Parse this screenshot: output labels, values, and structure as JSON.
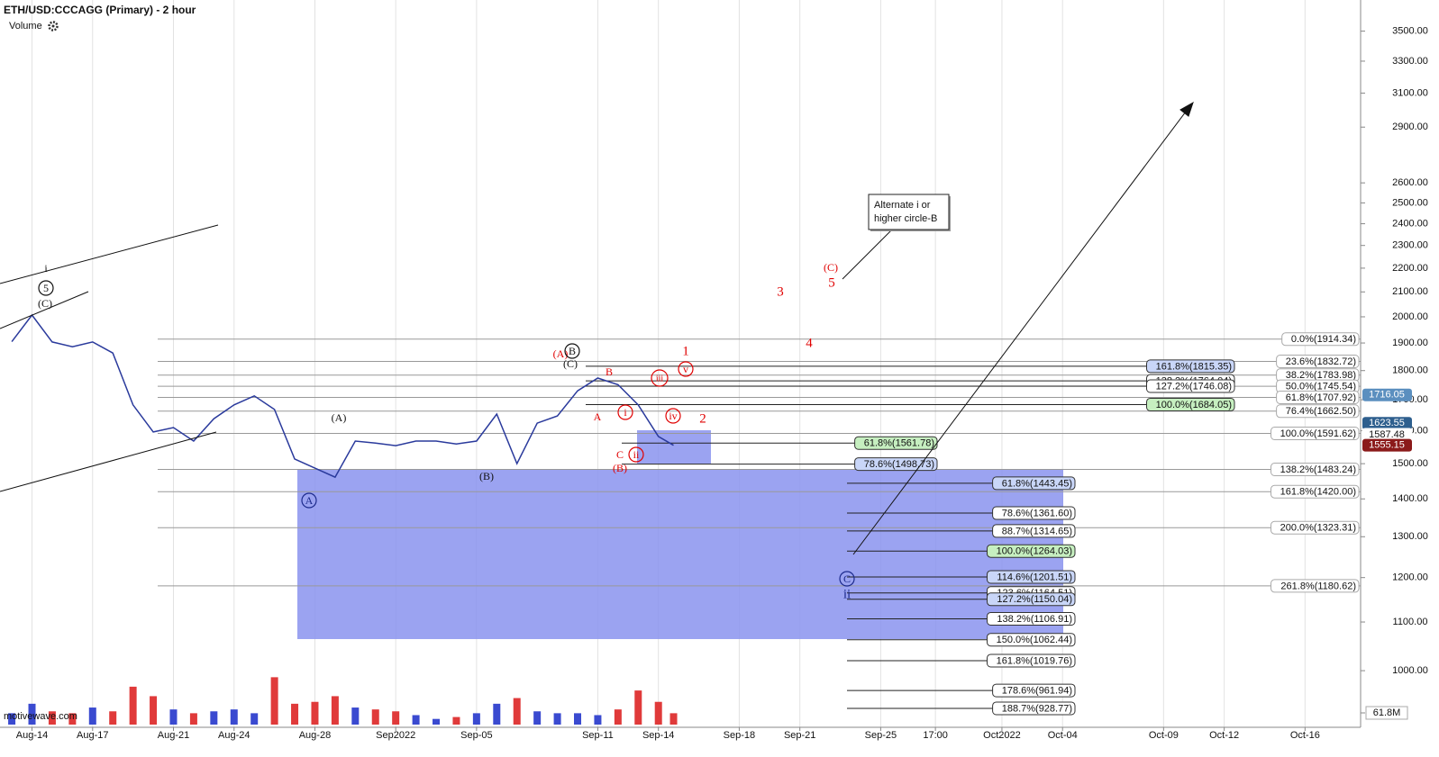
{
  "chart_data": {
    "type": "line",
    "title": "ETH/USD:CCCAGG (Primary) - 2 hour",
    "indicator": "Volume",
    "watermark": "motivewave.com",
    "log_scale": true,
    "grid": true,
    "color": "#2a3a9c",
    "xlim": [
      "2022-08-12T10:00",
      "2022-10-18T18:00"
    ],
    "xticks": [
      {
        "value": "2022-08-14",
        "label": "Aug-14"
      },
      {
        "value": "2022-08-17",
        "label": "Aug-17"
      },
      {
        "value": "2022-08-21",
        "label": "Aug-21"
      },
      {
        "value": "2022-08-24",
        "label": "Aug-24"
      },
      {
        "value": "2022-08-28",
        "label": "Aug-28"
      },
      {
        "value": "2022-09-01",
        "label": "Sep2022"
      },
      {
        "value": "2022-09-05",
        "label": "Sep-05"
      },
      {
        "value": "2022-09-11",
        "label": "Sep-11"
      },
      {
        "value": "2022-09-14",
        "label": "Sep-14"
      },
      {
        "value": "2022-09-18",
        "label": "Sep-18"
      },
      {
        "value": "2022-09-21",
        "label": "Sep-21"
      },
      {
        "value": "2022-09-25",
        "label": "Sep-25"
      },
      {
        "value": "2022-09-27T17:00",
        "label": "17:00"
      },
      {
        "value": "2022-10-01",
        "label": "Oct2022"
      },
      {
        "value": "2022-10-04",
        "label": "Oct-04"
      },
      {
        "value": "2022-10-09",
        "label": "Oct-09"
      },
      {
        "value": "2022-10-12",
        "label": "Oct-12"
      },
      {
        "value": "2022-10-16",
        "label": "Oct-16"
      }
    ],
    "ylim": [
      895,
      3720
    ],
    "yticks": [
      {
        "value": 1000,
        "label": "1000.00"
      },
      {
        "value": 1100,
        "label": "1100.00"
      },
      {
        "value": 1200,
        "label": "1200.00"
      },
      {
        "value": 1300,
        "label": "1300.00"
      },
      {
        "value": 1400,
        "label": "1400.00"
      },
      {
        "value": 1500,
        "label": "1500.00"
      },
      {
        "value": 1600,
        "label": "1600.00"
      },
      {
        "value": 1700,
        "label": "1700.00"
      },
      {
        "value": 1800,
        "label": "1800.00"
      },
      {
        "value": 1900,
        "label": "1900.00"
      },
      {
        "value": 2000,
        "label": "2000.00"
      },
      {
        "value": 2100,
        "label": "2100.00"
      },
      {
        "value": 2200,
        "label": "2200.00"
      },
      {
        "value": 2300,
        "label": "2300.00"
      },
      {
        "value": 2400,
        "label": "2400.00"
      },
      {
        "value": 2500,
        "label": "2500.00"
      },
      {
        "value": 2600,
        "label": "2600.00"
      },
      {
        "value": 2900,
        "label": "2900.00"
      },
      {
        "value": 3100,
        "label": "3100.00"
      },
      {
        "value": 3300,
        "label": "3300.00"
      },
      {
        "value": 3500,
        "label": "3500.00"
      }
    ],
    "x": [
      "2022-08-13",
      "2022-08-14",
      "2022-08-15",
      "2022-08-16",
      "2022-08-17",
      "2022-08-18",
      "2022-08-19",
      "2022-08-20",
      "2022-08-21",
      "2022-08-22",
      "2022-08-23",
      "2022-08-24",
      "2022-08-25",
      "2022-08-26",
      "2022-08-27",
      "2022-08-28",
      "2022-08-29",
      "2022-08-30",
      "2022-08-31",
      "2022-09-01",
      "2022-09-02",
      "2022-09-03",
      "2022-09-04",
      "2022-09-05",
      "2022-09-06",
      "2022-09-07",
      "2022-09-08",
      "2022-09-09",
      "2022-09-10",
      "2022-09-11",
      "2022-09-12",
      "2022-09-13",
      "2022-09-14",
      "2022-09-14T18:00"
    ],
    "values": [
      1905,
      2007,
      1904,
      1886,
      1904,
      1863,
      1683,
      1596,
      1610,
      1568,
      1638,
      1683,
      1713,
      1668,
      1514,
      1487,
      1461,
      1568,
      1562,
      1554,
      1568,
      1568,
      1559,
      1568,
      1653,
      1500,
      1624,
      1647,
      1730,
      1774,
      1751,
      1683,
      1582,
      1555
    ],
    "volume": {
      "up_color": "#3a4ad0",
      "down_color": "#e03a3a",
      "vlim": [
        0,
        380
      ],
      "vticks": [
        {
          "value": 61.8,
          "label": "61.8M"
        }
      ],
      "values": [
        60,
        110,
        70,
        60,
        90,
        70,
        200,
        150,
        80,
        60,
        70,
        80,
        60,
        250,
        110,
        120,
        150,
        90,
        80,
        70,
        50,
        30,
        40,
        60,
        110,
        140,
        70,
        60,
        60,
        50,
        80,
        180,
        120,
        60
      ]
    },
    "price_markers": [
      {
        "value": 1716.05,
        "color": "#5b8fbf"
      },
      {
        "value": 1623.55,
        "color": "#2e5f8e"
      },
      {
        "value": 1587.48
      },
      {
        "value": 1555.15,
        "color": "#8b1a1a"
      }
    ],
    "fib_groups": [
      {
        "levels": [
          {
            "value": 1914.34,
            "label": "0.0%(1914.34)"
          },
          {
            "value": 1832.72,
            "label": "23.6%(1832.72)"
          },
          {
            "value": 1783.98,
            "label": "38.2%(1783.98)"
          },
          {
            "value": 1745.54,
            "label": "50.0%(1745.54)"
          },
          {
            "value": 1707.92,
            "label": "61.8%(1707.92)"
          },
          {
            "value": 1662.5,
            "label": "76.4%(1662.50)"
          },
          {
            "value": 1591.62,
            "label": "100.0%(1591.62)"
          },
          {
            "value": 1483.24,
            "label": "138.2%(1483.24)"
          },
          {
            "value": 1420.0,
            "label": "161.8%(1420.00)"
          },
          {
            "value": 1323.31,
            "label": "200.0%(1323.31)"
          },
          {
            "value": 1180.62,
            "label": "261.8%(1180.62)"
          }
        ]
      },
      {
        "levels": [
          {
            "value": 1815.35,
            "label": "161.8%(1815.35)",
            "fill": "#c9d6f8"
          },
          {
            "value": 1764.04,
            "label": "138.2%(1764.04)"
          },
          {
            "value": 1746.08,
            "label": "127.2%(1746.08)"
          },
          {
            "value": 1684.05,
            "label": "100.0%(1684.05)",
            "fill": "#c6efc0"
          }
        ]
      },
      {
        "levels": [
          {
            "value": 1561.78,
            "label": "61.8%(1561.78)",
            "fill": "#c6efc0"
          },
          {
            "value": 1498.73,
            "label": "78.6%(1498.73)",
            "fill": "#c9d6f8"
          }
        ]
      },
      {
        "levels": [
          {
            "value": 1443.45,
            "label": "61.8%(1443.45)",
            "fill": "#c9d6f8"
          },
          {
            "value": 1361.6,
            "label": "78.6%(1361.60)"
          },
          {
            "value": 1314.65,
            "label": "88.7%(1314.65)"
          },
          {
            "value": 1264.03,
            "label": "100.0%(1264.03)",
            "fill": "#c6efc0"
          },
          {
            "value": 1201.51,
            "label": "114.6%(1201.51)",
            "fill": "#c9d6f8"
          },
          {
            "value": 1164.51,
            "label": "123.6%(1164.51)"
          },
          {
            "value": 1150.04,
            "label": "127.2%(1150.04)",
            "fill": "#c9d6f8"
          },
          {
            "value": 1106.91,
            "label": "138.2%(1106.91)"
          },
          {
            "value": 1062.44,
            "label": "150.0%(1062.44)"
          },
          {
            "value": 1019.76,
            "label": "161.8%(1019.76)"
          },
          {
            "value": 961.94,
            "label": "178.6%(961.94)"
          },
          {
            "value": 928.77,
            "label": "188.7%(928.77)"
          }
        ]
      }
    ],
    "wave_labels": [
      {
        "text": "i",
        "color": "#111111"
      },
      {
        "text": "5",
        "color": "#111111",
        "circled": true
      },
      {
        "text": "(C)",
        "color": "#111111"
      },
      {
        "text": "A",
        "color": "#1c2a8c",
        "circled": true
      },
      {
        "text": "(A)",
        "color": "#111111"
      },
      {
        "text": "(B)",
        "color": "#111111"
      },
      {
        "text": "(A)",
        "color": "#e00000"
      },
      {
        "text": "B",
        "color": "#111111",
        "circled": true
      },
      {
        "text": "(C)",
        "color": "#111111"
      },
      {
        "text": "B",
        "color": "#e00000"
      },
      {
        "text": "A",
        "color": "#e00000"
      },
      {
        "text": "C",
        "color": "#e00000"
      },
      {
        "text": "(B)",
        "color": "#e00000"
      },
      {
        "text": "i",
        "color": "#e00000",
        "circled": true
      },
      {
        "text": "ii",
        "color": "#e00000",
        "circled": true
      },
      {
        "text": "iii",
        "color": "#e00000",
        "circled": true
      },
      {
        "text": "iv",
        "color": "#e00000",
        "circled": true
      },
      {
        "text": "v",
        "color": "#e00000",
        "circled": true
      },
      {
        "text": "1",
        "color": "#e00000",
        "big": true
      },
      {
        "text": "2",
        "color": "#e00000",
        "big": true
      },
      {
        "text": "3",
        "color": "#e00000",
        "big": true
      },
      {
        "text": "4",
        "color": "#e00000",
        "big": true
      },
      {
        "text": "(C)",
        "color": "#e00000"
      },
      {
        "text": "5",
        "color": "#e00000",
        "big": true
      },
      {
        "text": "C",
        "color": "#1c2a8c",
        "circled": true
      },
      {
        "text": "ii",
        "color": "#1c2a8c",
        "big": true
      }
    ],
    "callout": [
      "Alternate i or",
      "higher circle-B"
    ]
  }
}
